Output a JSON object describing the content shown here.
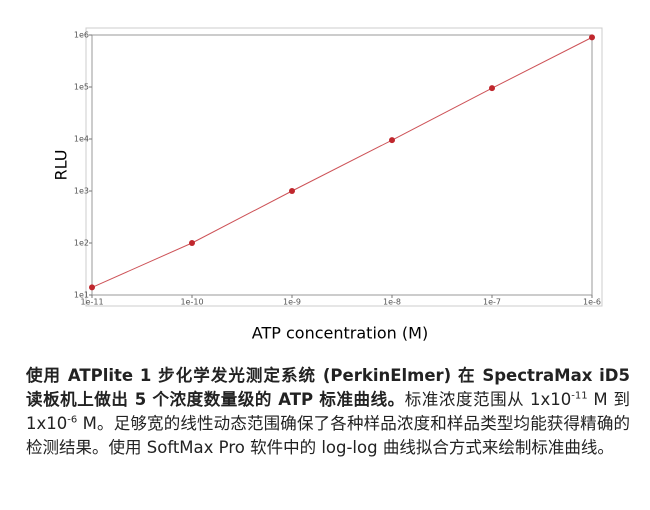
{
  "chart_data": {
    "type": "line",
    "x_label": "ATP concentration (M)",
    "y_label": "RLU",
    "x": [
      1e-11,
      1e-10,
      1e-09,
      1e-08,
      1e-07,
      1e-06
    ],
    "series": [
      {
        "color": "#c0272d",
        "values": [
          14,
          100,
          1000,
          9500,
          95000,
          900000
        ]
      }
    ],
    "xlim": [
      1e-11,
      1e-06
    ],
    "xticks": [
      {
        "value": 1e-11,
        "label": "1e-11"
      },
      {
        "value": 1e-10,
        "label": "1e-10"
      },
      {
        "value": 1e-09,
        "label": "1e-9"
      },
      {
        "value": 1e-08,
        "label": "1e-8"
      },
      {
        "value": 1e-07,
        "label": "1e-7"
      },
      {
        "value": 1e-06,
        "label": "1e-6"
      }
    ],
    "ylim": [
      10,
      1000000
    ],
    "yticks": [
      {
        "value": 10,
        "label": "1e1"
      },
      {
        "value": 100,
        "label": "1e2"
      },
      {
        "value": 1000,
        "label": "1e3"
      },
      {
        "value": 10000,
        "label": "1e4"
      },
      {
        "value": 100000,
        "label": "1e5"
      },
      {
        "value": 1000000,
        "label": "1e6"
      }
    ],
    "log_x": true,
    "log_y": true,
    "grid": false
  },
  "caption": {
    "bold": "使用 ATPlite 1 步化学发光测定系统 (PerkinElmer) 在 SpectraMax iD5 读板机上做出 5 个浓度数量级的 ATP 标准曲线。",
    "text1": "标准浓度范围从 1x10",
    "sup1": "-11",
    "text2": " M 到 1x10",
    "sup2": "-6",
    "text3": " M。足够宽的线性动态范围确保了各种样品浓度和样品类型均能获得精确的检测结果。使用 SoftMax Pro 软件中的 log-log 曲线拟合方式来绘制标准曲线。"
  }
}
